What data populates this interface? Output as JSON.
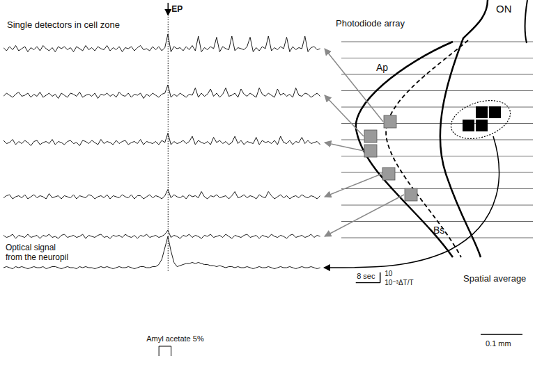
{
  "figure": {
    "left_title": "Single detectors in cell zone",
    "right_title": "Photodiode array",
    "event_marker": {
      "label": "EP",
      "time": 54
    },
    "regions": {
      "top": "ON",
      "upper": "Ap",
      "lower": "Bs"
    },
    "spatial_average_label": "Spatial average",
    "neuropil_label": [
      "Optical signal",
      "from the neuropil"
    ],
    "stimulus": {
      "label": "Amyl acetate 5%",
      "start": 51,
      "duration": 4
    },
    "time_scale_bar": {
      "value": 8,
      "label": "8 sec"
    },
    "amplitude_scale_bar": {
      "value": 10,
      "label": "10",
      "units": "10⁻³ΔT/T"
    },
    "distance_scale_bar": {
      "value": 0.1,
      "label": "0.1 mm"
    }
  },
  "chart_data": {
    "type": "line",
    "tick_labels": false,
    "x": [
      0,
      1,
      2,
      3,
      4,
      5,
      6,
      7,
      8,
      9,
      10,
      11,
      12,
      13,
      14,
      15,
      16,
      17,
      18,
      19,
      20,
      21,
      22,
      23,
      24,
      25,
      26,
      27,
      28,
      29,
      30,
      31,
      32,
      33,
      34,
      35,
      36,
      37,
      38,
      39,
      40,
      41,
      42,
      43,
      44,
      45,
      46,
      47,
      48,
      49,
      50,
      51,
      52,
      53,
      54,
      55,
      56,
      57,
      58,
      59,
      60,
      61,
      62,
      63,
      64,
      65,
      66,
      67,
      68,
      69,
      70,
      71,
      72,
      73,
      74,
      75,
      76,
      77,
      78,
      79,
      80,
      81,
      82,
      83,
      84,
      85,
      86,
      87,
      88,
      89,
      90,
      91,
      92,
      93,
      94,
      95,
      96,
      97,
      98,
      99,
      100,
      101,
      102,
      103,
      104
    ],
    "xlim": [
      0,
      124
    ],
    "ylim": [
      -6,
      15
    ],
    "y2lim": [
      -15,
      34
    ],
    "series": [
      {
        "color": "#1a1a1a",
        "axis": "y",
        "values": [
          1,
          -2,
          2,
          -1,
          3,
          -2,
          0,
          2,
          -3,
          1,
          -1,
          2,
          -2,
          3,
          0,
          -2,
          1,
          -3,
          2,
          0,
          2,
          -1,
          1,
          -3,
          2,
          0,
          -2,
          3,
          -1,
          1,
          -2,
          2,
          0,
          -1,
          3,
          -2,
          1,
          -1,
          2,
          -3,
          1,
          0,
          2,
          -2,
          1,
          3,
          -1,
          0,
          -2,
          2,
          -1,
          2,
          -2,
          1,
          14,
          -3,
          2,
          0,
          1,
          -2,
          2,
          -1,
          3,
          -2,
          12,
          -3,
          1,
          -1,
          2,
          0,
          11,
          -3,
          2,
          0,
          -1,
          12,
          -2,
          1,
          0,
          -1,
          2,
          11,
          -3,
          1,
          -2,
          2,
          0,
          12,
          -2,
          1,
          -1,
          2,
          0,
          11,
          -3,
          2,
          -1,
          1,
          0,
          12,
          -3,
          1,
          2,
          -1,
          0
        ]
      },
      {
        "color": "#1a1a1a",
        "axis": "y",
        "values": [
          -1,
          2,
          0,
          -2,
          1,
          3,
          -1,
          0,
          2,
          -2,
          1,
          -1,
          3,
          -2,
          0,
          2,
          -1,
          1,
          -3,
          2,
          0,
          -2,
          2,
          1,
          -1,
          3,
          -2,
          0,
          1,
          -1,
          2,
          -3,
          1,
          0,
          2,
          -1,
          1,
          -2,
          3,
          0,
          -1,
          2,
          -2,
          1,
          0,
          2,
          -3,
          1,
          -1,
          2,
          0,
          -2,
          1,
          2,
          10,
          -2,
          1,
          -1,
          2,
          0,
          -2,
          1,
          0,
          7,
          -2,
          2,
          -1,
          1,
          6,
          -1,
          2,
          -2,
          1,
          7,
          -1,
          0,
          2,
          -2,
          6,
          1,
          -1,
          2,
          0,
          -2,
          7,
          1,
          -1,
          2,
          0,
          -2,
          6,
          0,
          2,
          -1,
          1,
          -2,
          7,
          0,
          -1,
          2,
          1,
          -2,
          0,
          2,
          -1
        ]
      },
      {
        "color": "#1a1a1a",
        "axis": "y",
        "values": [
          2,
          -1,
          0,
          3,
          -2,
          1,
          -1,
          2,
          0,
          -3,
          1,
          2,
          -2,
          0,
          1,
          -1,
          3,
          -2,
          1,
          0,
          -2,
          1,
          2,
          -1,
          0,
          -3,
          2,
          1,
          -1,
          2,
          0,
          -2,
          3,
          -1,
          1,
          0,
          -2,
          2,
          -1,
          1,
          2,
          -2,
          0,
          1,
          -1,
          3,
          -2,
          1,
          0,
          -1,
          1,
          -2,
          2,
          0,
          9,
          -2,
          1,
          -1,
          0,
          2,
          -1,
          1,
          6,
          -2,
          2,
          0,
          -1,
          1,
          -2,
          5,
          0,
          2,
          -1,
          1,
          -2,
          0,
          6,
          -1,
          2,
          -2,
          1,
          0,
          -1,
          5,
          -2,
          2,
          0,
          1,
          -1,
          2,
          -2,
          6,
          0,
          -1,
          2,
          -2,
          1,
          0,
          5,
          -1,
          2,
          -1,
          0,
          1,
          -2
        ]
      },
      {
        "color": "#1a1a1a",
        "axis": "y",
        "values": [
          -1,
          1,
          2,
          -2,
          0,
          1,
          -1,
          2,
          -2,
          0,
          2,
          -1,
          1,
          0,
          -2,
          3,
          -1,
          0,
          1,
          -2,
          1,
          0,
          -1,
          2,
          -2,
          1,
          0,
          -1,
          2,
          1,
          -2,
          0,
          1,
          -1,
          2,
          -2,
          1,
          0,
          -1,
          2,
          0,
          -1,
          2,
          -2,
          1,
          1,
          -2,
          0,
          2,
          -1,
          1,
          0,
          -2,
          1,
          7,
          -1,
          2,
          0,
          -1,
          1,
          -2,
          2,
          0,
          1,
          -1,
          5,
          0,
          -2,
          1,
          0,
          2,
          -1,
          0,
          1,
          -2,
          1,
          5,
          -1,
          0,
          2,
          -1,
          1,
          0,
          -2,
          2,
          0,
          -1,
          5,
          1,
          -2,
          0,
          2,
          -1,
          1,
          -2,
          0,
          1,
          -1,
          2,
          0,
          -1,
          1,
          0,
          -2,
          1
        ]
      },
      {
        "color": "#1a1a1a",
        "axis": "y",
        "values": [
          1,
          -1,
          0,
          2,
          -2,
          1,
          0,
          -1,
          2,
          -1,
          0,
          1,
          -2,
          1,
          0,
          2,
          -1,
          0,
          -2,
          1,
          2,
          -1,
          0,
          1,
          -1,
          0,
          2,
          -2,
          1,
          0,
          -1,
          1,
          2,
          -1,
          0,
          -2,
          1,
          0,
          1,
          -1,
          2,
          0,
          -1,
          1,
          -2,
          1,
          0,
          2,
          -1,
          0,
          1,
          -1,
          0,
          2,
          6,
          -1,
          1,
          0,
          -2,
          1,
          0,
          2,
          -1,
          1,
          0,
          -2,
          1,
          0,
          2,
          -1,
          0,
          1,
          -1,
          2,
          0,
          -2,
          1,
          0,
          -1,
          1,
          2,
          -1,
          0,
          1,
          -2,
          1,
          0,
          -1,
          2,
          0,
          -1,
          1,
          0,
          -2,
          1,
          2,
          -1,
          0,
          1,
          -1,
          0,
          2,
          -1,
          1,
          0
        ]
      },
      {
        "color": "#1a1a1a",
        "axis": "y2",
        "values": [
          0,
          1,
          0,
          -1,
          1,
          0,
          1,
          0,
          -1,
          0,
          1,
          0,
          0,
          1,
          -1,
          0,
          1,
          1,
          0,
          -1,
          0,
          1,
          0,
          0,
          -1,
          1,
          0,
          1,
          0,
          0,
          -1,
          0,
          1,
          0,
          1,
          0,
          -1,
          0,
          1,
          0,
          0,
          1,
          0,
          -1,
          0,
          1,
          1,
          0,
          0,
          1,
          1,
          3,
          8,
          20,
          30,
          16,
          5,
          1,
          2,
          3,
          4,
          4,
          5,
          4,
          5,
          4,
          3,
          3,
          2,
          2,
          1,
          2,
          1,
          0,
          1,
          1,
          0,
          1,
          0,
          0,
          1,
          0,
          -1,
          0,
          1,
          0,
          0,
          1,
          0,
          -1,
          0,
          1,
          0,
          0,
          1,
          0,
          -1,
          0,
          1,
          0,
          0,
          1,
          0,
          -1,
          0
        ]
      }
    ]
  }
}
